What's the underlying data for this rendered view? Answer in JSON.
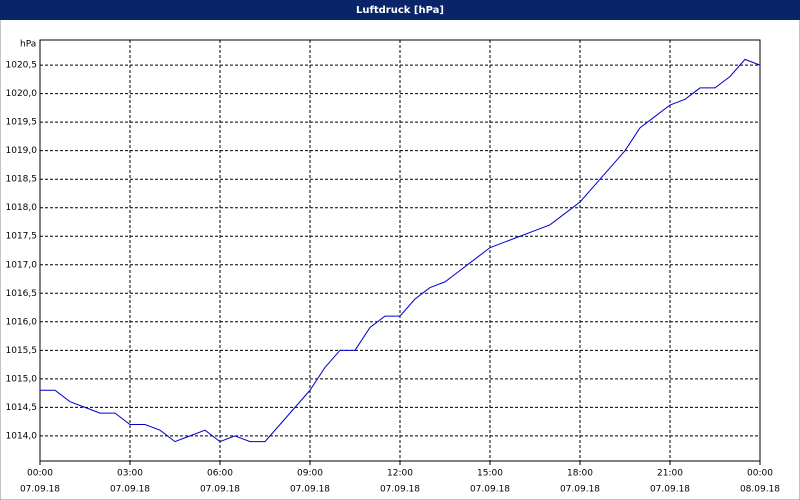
{
  "chart_data": {
    "type": "line",
    "title": "Luftdruck [hPa]",
    "y_label": "hPa",
    "x": [
      0,
      0.5,
      1,
      1.5,
      2,
      2.5,
      3,
      3.5,
      4,
      4.5,
      5,
      5.5,
      6,
      6.5,
      7,
      7.5,
      8,
      8.5,
      9,
      9.5,
      10,
      10.5,
      11,
      11.5,
      12,
      12.5,
      13,
      13.5,
      14,
      14.5,
      15,
      15.5,
      16,
      16.5,
      17,
      17.5,
      18,
      18.5,
      19,
      19.5,
      20,
      20.5,
      21,
      21.5,
      22,
      22.5,
      23,
      23.5,
      24
    ],
    "series": [
      {
        "name": "Luftdruck",
        "color": "#0000c8",
        "values": [
          1014.8,
          1014.8,
          1014.6,
          1014.5,
          1014.4,
          1014.4,
          1014.2,
          1014.2,
          1014.1,
          1013.9,
          1014.0,
          1014.1,
          1013.9,
          1014.0,
          1013.9,
          1013.9,
          1014.2,
          1014.5,
          1014.8,
          1015.2,
          1015.5,
          1015.5,
          1015.9,
          1016.1,
          1016.1,
          1016.4,
          1016.6,
          1016.7,
          1016.9,
          1017.1,
          1017.3,
          1017.4,
          1017.5,
          1017.6,
          1017.7,
          1017.9,
          1018.1,
          1018.4,
          1018.7,
          1019.0,
          1019.4,
          1019.6,
          1019.8,
          1019.9,
          1020.1,
          1020.1,
          1020.3,
          1020.6,
          1020.5
        ]
      }
    ],
    "xlim": [
      0,
      24
    ],
    "xticks": [
      {
        "value": 0,
        "label": "00:00"
      },
      {
        "value": 3,
        "label": "03:00"
      },
      {
        "value": 6,
        "label": "06:00"
      },
      {
        "value": 9,
        "label": "09:00"
      },
      {
        "value": 12,
        "label": "12:00"
      },
      {
        "value": 15,
        "label": "15:00"
      },
      {
        "value": 18,
        "label": "18:00"
      },
      {
        "value": 21,
        "label": "21:00"
      },
      {
        "value": 24,
        "label": "00:00"
      }
    ],
    "xtick_dates": [
      "07.09.18",
      "07.09.18",
      "07.09.18",
      "07.09.18",
      "07.09.18",
      "07.09.18",
      "07.09.18",
      "07.09.18",
      "08.09.18"
    ],
    "ylim": [
      1013.56,
      1020.94
    ],
    "yticks": [
      {
        "value": 1014.0,
        "label": "1014,0"
      },
      {
        "value": 1014.5,
        "label": "1014,5"
      },
      {
        "value": 1015.0,
        "label": "1015,0"
      },
      {
        "value": 1015.5,
        "label": "1015,5"
      },
      {
        "value": 1016.0,
        "label": "1016,0"
      },
      {
        "value": 1016.5,
        "label": "1016,5"
      },
      {
        "value": 1017.0,
        "label": "1017,0"
      },
      {
        "value": 1017.5,
        "label": "1017,5"
      },
      {
        "value": 1018.0,
        "label": "1018,0"
      },
      {
        "value": 1018.5,
        "label": "1018,5"
      },
      {
        "value": 1019.0,
        "label": "1019,0"
      },
      {
        "value": 1019.5,
        "label": "1019,5"
      },
      {
        "value": 1020.0,
        "label": "1020,0"
      },
      {
        "value": 1020.5,
        "label": "1020,5"
      }
    ],
    "grid": true
  }
}
